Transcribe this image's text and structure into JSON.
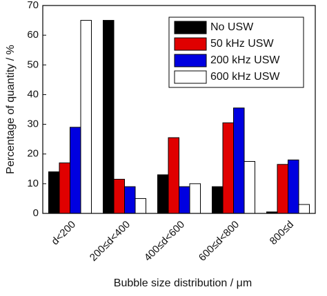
{
  "chart_data": {
    "type": "bar",
    "x_label": "Bubble size distribution / μm",
    "y_label": "Percentage of quantity / %",
    "categories": [
      "d<200",
      "200≤d<400",
      "400≤d<600",
      "600≤d<800",
      "800≤d"
    ],
    "series": [
      {
        "name": "No USW",
        "color": "#000000",
        "values": [
          14,
          65,
          13,
          9,
          0.5
        ]
      },
      {
        "name": "50 kHz USW",
        "color": "#e00000",
        "values": [
          17,
          11.5,
          25.5,
          30.5,
          16.5
        ]
      },
      {
        "name": "200 kHz USW",
        "color": "#0000e0",
        "values": [
          29,
          9,
          9,
          35.5,
          18
        ]
      },
      {
        "name": "600 kHz USW",
        "color": "#ffffff",
        "values": [
          65,
          5,
          10,
          17.5,
          3
        ]
      }
    ],
    "ylim": [
      0,
      70
    ],
    "yticks": [
      0,
      10,
      20,
      30,
      40,
      50,
      60,
      70
    ],
    "grid": false,
    "legend": "upper right"
  }
}
